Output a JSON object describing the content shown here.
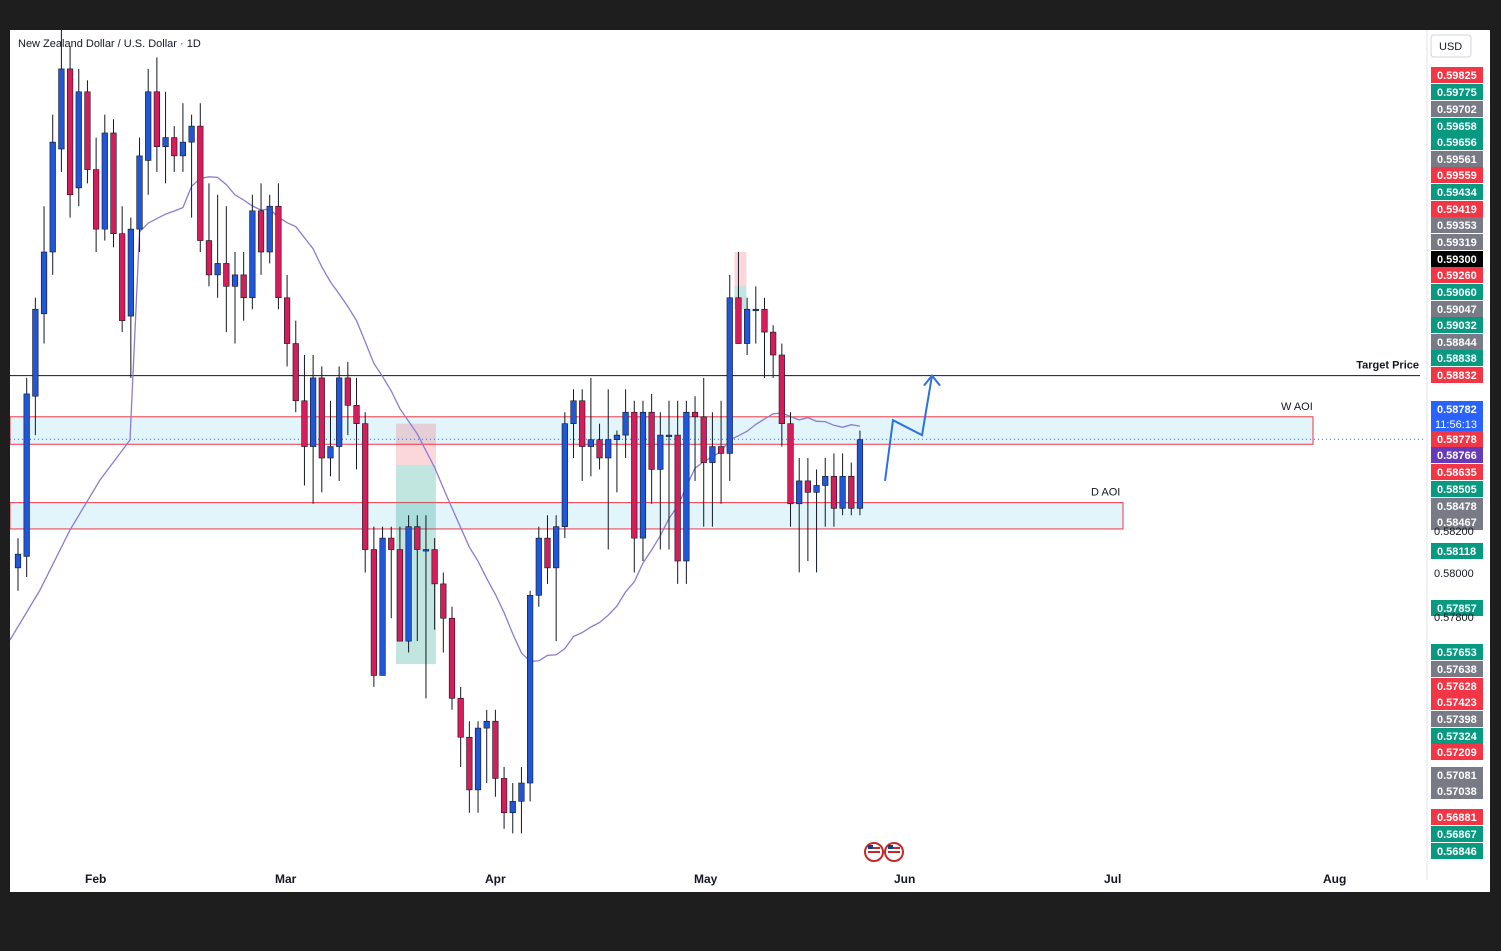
{
  "chart_data": {
    "type": "candlestick",
    "title": "New Zealand Dollar / U.S. Dollar · 1D",
    "currency": "USD",
    "x_axis_labels": [
      "Feb",
      "Mar",
      "Apr",
      "May",
      "Jun",
      "Jul",
      "Aug"
    ],
    "price_axis_labels": [
      "0.58200",
      "0.58000",
      "0.57800"
    ],
    "candles": [
      {
        "o": 0.5822,
        "h": 0.5835,
        "l": 0.5812,
        "c": 0.5828
      },
      {
        "o": 0.5827,
        "h": 0.5905,
        "l": 0.5818,
        "c": 0.5898
      },
      {
        "o": 0.5897,
        "h": 0.594,
        "l": 0.588,
        "c": 0.5935
      },
      {
        "o": 0.5933,
        "h": 0.598,
        "l": 0.592,
        "c": 0.596
      },
      {
        "o": 0.596,
        "h": 0.602,
        "l": 0.595,
        "c": 0.6008
      },
      {
        "o": 0.6005,
        "h": 0.606,
        "l": 0.5995,
        "c": 0.604
      },
      {
        "o": 0.604,
        "h": 0.605,
        "l": 0.5975,
        "c": 0.5985
      },
      {
        "o": 0.5988,
        "h": 0.604,
        "l": 0.598,
        "c": 0.603
      },
      {
        "o": 0.603,
        "h": 0.6035,
        "l": 0.599,
        "c": 0.5996
      },
      {
        "o": 0.5996,
        "h": 0.601,
        "l": 0.596,
        "c": 0.597
      },
      {
        "o": 0.597,
        "h": 0.602,
        "l": 0.5965,
        "c": 0.6012
      },
      {
        "o": 0.6012,
        "h": 0.6018,
        "l": 0.5962,
        "c": 0.5968
      },
      {
        "o": 0.5968,
        "h": 0.598,
        "l": 0.5925,
        "c": 0.593
      },
      {
        "o": 0.5932,
        "h": 0.5975,
        "l": 0.5905,
        "c": 0.597
      },
      {
        "o": 0.597,
        "h": 0.601,
        "l": 0.596,
        "c": 0.6002
      },
      {
        "o": 0.6,
        "h": 0.604,
        "l": 0.5985,
        "c": 0.603
      },
      {
        "o": 0.603,
        "h": 0.6045,
        "l": 0.5995,
        "c": 0.6006
      },
      {
        "o": 0.6006,
        "h": 0.603,
        "l": 0.599,
        "c": 0.601
      },
      {
        "o": 0.601,
        "h": 0.6015,
        "l": 0.5995,
        "c": 0.6002
      },
      {
        "o": 0.6002,
        "h": 0.6025,
        "l": 0.5995,
        "c": 0.6008
      },
      {
        "o": 0.6008,
        "h": 0.602,
        "l": 0.5975,
        "c": 0.6015
      },
      {
        "o": 0.6015,
        "h": 0.6025,
        "l": 0.596,
        "c": 0.5965
      },
      {
        "o": 0.5965,
        "h": 0.599,
        "l": 0.5945,
        "c": 0.595
      },
      {
        "o": 0.595,
        "h": 0.5985,
        "l": 0.594,
        "c": 0.5955
      },
      {
        "o": 0.5955,
        "h": 0.598,
        "l": 0.5925,
        "c": 0.5945
      },
      {
        "o": 0.5945,
        "h": 0.596,
        "l": 0.592,
        "c": 0.595
      },
      {
        "o": 0.595,
        "h": 0.596,
        "l": 0.593,
        "c": 0.594
      },
      {
        "o": 0.594,
        "h": 0.5985,
        "l": 0.5935,
        "c": 0.5978
      },
      {
        "o": 0.5978,
        "h": 0.599,
        "l": 0.595,
        "c": 0.596
      },
      {
        "o": 0.596,
        "h": 0.5985,
        "l": 0.5955,
        "c": 0.598
      },
      {
        "o": 0.598,
        "h": 0.599,
        "l": 0.5935,
        "c": 0.594
      },
      {
        "o": 0.594,
        "h": 0.595,
        "l": 0.591,
        "c": 0.592
      },
      {
        "o": 0.592,
        "h": 0.593,
        "l": 0.589,
        "c": 0.5895
      },
      {
        "o": 0.5895,
        "h": 0.5915,
        "l": 0.5858,
        "c": 0.5875
      },
      {
        "o": 0.5875,
        "h": 0.5915,
        "l": 0.585,
        "c": 0.5905
      },
      {
        "o": 0.5905,
        "h": 0.591,
        "l": 0.5855,
        "c": 0.587
      },
      {
        "o": 0.587,
        "h": 0.5895,
        "l": 0.5862,
        "c": 0.5875
      },
      {
        "o": 0.5875,
        "h": 0.591,
        "l": 0.586,
        "c": 0.5905
      },
      {
        "o": 0.5905,
        "h": 0.5912,
        "l": 0.588,
        "c": 0.5893
      },
      {
        "o": 0.5893,
        "h": 0.5905,
        "l": 0.5865,
        "c": 0.5885
      },
      {
        "o": 0.5885,
        "h": 0.589,
        "l": 0.582,
        "c": 0.583
      },
      {
        "o": 0.583,
        "h": 0.584,
        "l": 0.577,
        "c": 0.5775
      },
      {
        "o": 0.5775,
        "h": 0.584,
        "l": 0.5775,
        "c": 0.5835
      },
      {
        "o": 0.5835,
        "h": 0.584,
        "l": 0.58,
        "c": 0.583
      },
      {
        "o": 0.583,
        "h": 0.584,
        "l": 0.579,
        "c": 0.579
      },
      {
        "o": 0.579,
        "h": 0.5845,
        "l": 0.5785,
        "c": 0.584
      },
      {
        "o": 0.584,
        "h": 0.5845,
        "l": 0.579,
        "c": 0.583
      },
      {
        "o": 0.583,
        "h": 0.5845,
        "l": 0.5765,
        "c": 0.583
      },
      {
        "o": 0.583,
        "h": 0.5835,
        "l": 0.5795,
        "c": 0.5815
      },
      {
        "o": 0.5815,
        "h": 0.582,
        "l": 0.5785,
        "c": 0.58
      },
      {
        "o": 0.58,
        "h": 0.5805,
        "l": 0.576,
        "c": 0.5765
      },
      {
        "o": 0.5765,
        "h": 0.577,
        "l": 0.5735,
        "c": 0.5748
      },
      {
        "o": 0.5748,
        "h": 0.5755,
        "l": 0.5715,
        "c": 0.5725
      },
      {
        "o": 0.5725,
        "h": 0.5755,
        "l": 0.5715,
        "c": 0.5752
      },
      {
        "o": 0.5752,
        "h": 0.576,
        "l": 0.5728,
        "c": 0.5755
      },
      {
        "o": 0.5755,
        "h": 0.576,
        "l": 0.5722,
        "c": 0.573
      },
      {
        "o": 0.573,
        "h": 0.5735,
        "l": 0.5708,
        "c": 0.5715
      },
      {
        "o": 0.5715,
        "h": 0.5728,
        "l": 0.5706,
        "c": 0.572
      },
      {
        "o": 0.572,
        "h": 0.5735,
        "l": 0.5706,
        "c": 0.5728
      },
      {
        "o": 0.5728,
        "h": 0.5812,
        "l": 0.572,
        "c": 0.581
      },
      {
        "o": 0.581,
        "h": 0.584,
        "l": 0.5805,
        "c": 0.5835
      },
      {
        "o": 0.5835,
        "h": 0.5845,
        "l": 0.5815,
        "c": 0.5822
      },
      {
        "o": 0.5822,
        "h": 0.5845,
        "l": 0.579,
        "c": 0.584
      },
      {
        "o": 0.584,
        "h": 0.589,
        "l": 0.5835,
        "c": 0.5885
      },
      {
        "o": 0.5885,
        "h": 0.59,
        "l": 0.587,
        "c": 0.5895
      },
      {
        "o": 0.5895,
        "h": 0.59,
        "l": 0.586,
        "c": 0.5875
      },
      {
        "o": 0.5875,
        "h": 0.5905,
        "l": 0.5862,
        "c": 0.5878
      },
      {
        "o": 0.5878,
        "h": 0.5885,
        "l": 0.5865,
        "c": 0.587
      },
      {
        "o": 0.587,
        "h": 0.59,
        "l": 0.583,
        "c": 0.5878
      },
      {
        "o": 0.5878,
        "h": 0.5882,
        "l": 0.5855,
        "c": 0.588
      },
      {
        "o": 0.588,
        "h": 0.59,
        "l": 0.587,
        "c": 0.589
      },
      {
        "o": 0.589,
        "h": 0.5895,
        "l": 0.582,
        "c": 0.5835
      },
      {
        "o": 0.5835,
        "h": 0.5895,
        "l": 0.5825,
        "c": 0.589
      },
      {
        "o": 0.589,
        "h": 0.5898,
        "l": 0.585,
        "c": 0.5865
      },
      {
        "o": 0.5865,
        "h": 0.589,
        "l": 0.583,
        "c": 0.588
      },
      {
        "o": 0.588,
        "h": 0.5895,
        "l": 0.583,
        "c": 0.588
      },
      {
        "o": 0.588,
        "h": 0.5895,
        "l": 0.5815,
        "c": 0.5825
      },
      {
        "o": 0.5825,
        "h": 0.5895,
        "l": 0.5815,
        "c": 0.589
      },
      {
        "o": 0.589,
        "h": 0.5897,
        "l": 0.586,
        "c": 0.5888
      },
      {
        "o": 0.5888,
        "h": 0.5905,
        "l": 0.584,
        "c": 0.5868
      },
      {
        "o": 0.5868,
        "h": 0.589,
        "l": 0.584,
        "c": 0.5875
      },
      {
        "o": 0.5875,
        "h": 0.5895,
        "l": 0.585,
        "c": 0.5872
      },
      {
        "o": 0.5872,
        "h": 0.595,
        "l": 0.586,
        "c": 0.594
      },
      {
        "o": 0.594,
        "h": 0.596,
        "l": 0.592,
        "c": 0.592
      },
      {
        "o": 0.592,
        "h": 0.594,
        "l": 0.5915,
        "c": 0.5935
      },
      {
        "o": 0.5935,
        "h": 0.5945,
        "l": 0.592,
        "c": 0.5935
      },
      {
        "o": 0.5935,
        "h": 0.594,
        "l": 0.5905,
        "c": 0.5925
      },
      {
        "o": 0.5925,
        "h": 0.5928,
        "l": 0.5905,
        "c": 0.5915
      },
      {
        "o": 0.5915,
        "h": 0.592,
        "l": 0.5875,
        "c": 0.5885
      },
      {
        "o": 0.5885,
        "h": 0.589,
        "l": 0.584,
        "c": 0.585
      },
      {
        "o": 0.585,
        "h": 0.587,
        "l": 0.582,
        "c": 0.586
      },
      {
        "o": 0.586,
        "h": 0.587,
        "l": 0.5825,
        "c": 0.5855
      },
      {
        "o": 0.5855,
        "h": 0.5865,
        "l": 0.582,
        "c": 0.5858
      },
      {
        "o": 0.5858,
        "h": 0.587,
        "l": 0.584,
        "c": 0.5862
      },
      {
        "o": 0.5862,
        "h": 0.5872,
        "l": 0.584,
        "c": 0.5848
      },
      {
        "o": 0.5848,
        "h": 0.5872,
        "l": 0.5845,
        "c": 0.5862
      },
      {
        "o": 0.5862,
        "h": 0.5868,
        "l": 0.5845,
        "c": 0.5848
      },
      {
        "o": 0.5848,
        "h": 0.5882,
        "l": 0.5845,
        "c": 0.5878
      }
    ],
    "moving_average": "series",
    "zones": [
      {
        "label": "W AOI",
        "top": 0.5888,
        "bottom": 0.5876
      },
      {
        "label": "D AOI",
        "top": 0.58505,
        "bottom": 0.5839
      }
    ],
    "target_price": {
      "label": "Target Price",
      "value": 0.5906
    },
    "current_price": {
      "value": "0.58782",
      "countdown": "11:56:13"
    },
    "price_tags": [
      {
        "text": "0.59825",
        "color": "#f23645"
      },
      {
        "text": "0.59775",
        "color": "#089981"
      },
      {
        "text": "0.59702",
        "color": "#787b86"
      },
      {
        "text": "0.59658",
        "color": "#089981"
      },
      {
        "text": "0.59656",
        "color": "#089981"
      },
      {
        "text": "0.59561",
        "color": "#787b86"
      },
      {
        "text": "0.59559",
        "color": "#f23645"
      },
      {
        "text": "0.59434",
        "color": "#089981"
      },
      {
        "text": "0.59419",
        "color": "#f23645"
      },
      {
        "text": "0.59353",
        "color": "#787b86"
      },
      {
        "text": "0.59319",
        "color": "#787b86"
      },
      {
        "text": "0.59300",
        "color": "#000000"
      },
      {
        "text": "0.59260",
        "color": "#f23645"
      },
      {
        "text": "0.59060",
        "color": "#089981"
      },
      {
        "text": "0.59047",
        "color": "#787b86"
      },
      {
        "text": "0.59032",
        "color": "#089981"
      },
      {
        "text": "0.58844",
        "color": "#787b86"
      },
      {
        "text": "0.58838",
        "color": "#089981"
      },
      {
        "text": "0.58832",
        "color": "#f23645"
      },
      {
        "text": "0.58782",
        "color": "#2962ff"
      },
      {
        "text": "0.58778",
        "color": "#f23645"
      },
      {
        "text": "0.58766",
        "color": "#673ab7"
      },
      {
        "text": "0.58635",
        "color": "#f23645"
      },
      {
        "text": "0.58505",
        "color": "#089981"
      },
      {
        "text": "0.58478",
        "color": "#787b86"
      },
      {
        "text": "0.58467",
        "color": "#787b86"
      },
      {
        "text": "0.58118",
        "color": "#089981"
      },
      {
        "text": "0.57857",
        "color": "#089981"
      },
      {
        "text": "0.57653",
        "color": "#089981"
      },
      {
        "text": "0.57638",
        "color": "#787b86"
      },
      {
        "text": "0.57628",
        "color": "#f23645"
      },
      {
        "text": "0.57423",
        "color": "#f23645"
      },
      {
        "text": "0.57398",
        "color": "#787b86"
      },
      {
        "text": "0.57324",
        "color": "#089981"
      },
      {
        "text": "0.57209",
        "color": "#f23645"
      },
      {
        "text": "0.57081",
        "color": "#787b86"
      },
      {
        "text": "0.57038",
        "color": "#787b86"
      },
      {
        "text": "0.56881",
        "color": "#f23645"
      },
      {
        "text": "0.56867",
        "color": "#089981"
      },
      {
        "text": "0.56846",
        "color": "#089981"
      }
    ],
    "colors": {
      "up": "#2157d6",
      "down": "#d41e5b",
      "ma": "#8f7ad0",
      "zone_fill": "#e2f5fb",
      "zone_border": "#f23645",
      "arrow": "#2f6fe0"
    }
  }
}
